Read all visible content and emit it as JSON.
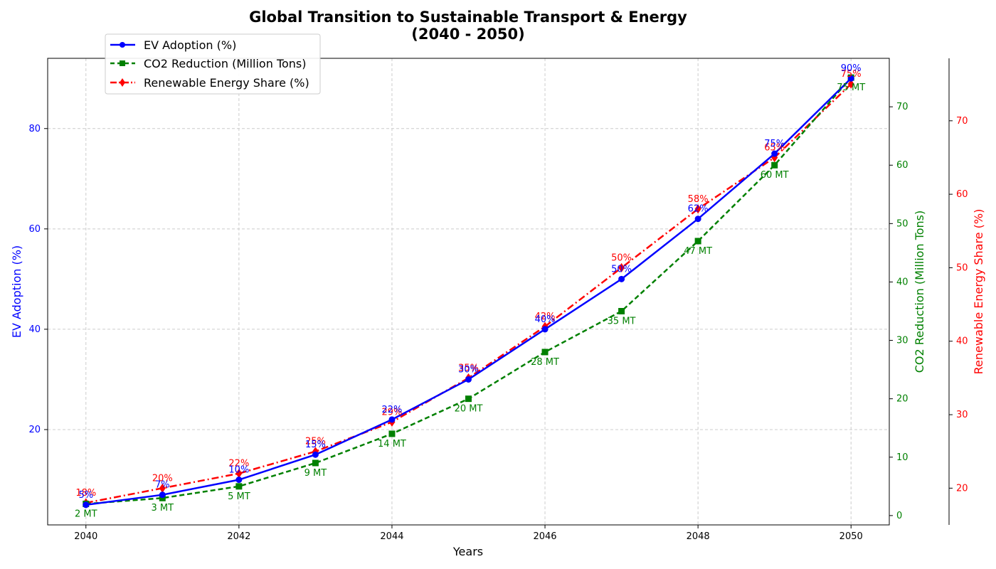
{
  "chart_data": {
    "type": "line",
    "title": "Global Transition to Sustainable Transport & Energy",
    "subtitle": "(2040 - 2050)",
    "xlabel": "Years",
    "x": [
      2040,
      2041,
      2042,
      2043,
      2044,
      2045,
      2046,
      2047,
      2048,
      2049,
      2050
    ],
    "x_ticks": [
      2040,
      2042,
      2044,
      2046,
      2048,
      2050
    ],
    "xlim": [
      2039.5,
      2050.5
    ],
    "grid": true,
    "legend_position": "top-left",
    "series": [
      {
        "name": "EV Adoption (%)",
        "axis": "left",
        "ylabel": "EV Adoption (%)",
        "ylim": [
          1,
          94
        ],
        "ticks": [
          20,
          40,
          60,
          80
        ],
        "color": "#0000ff",
        "linestyle": "solid",
        "marker": "circle",
        "values": [
          5,
          7,
          10,
          15,
          22,
          30,
          40,
          50,
          62,
          75,
          90
        ],
        "labels": [
          "5%",
          "7%",
          "10%",
          "15%",
          "22%",
          "30%",
          "40%",
          "50%",
          "62%",
          "75%",
          "90%"
        ]
      },
      {
        "name": "CO2 Reduction (Million Tons)",
        "axis": "right",
        "ylabel": "CO2 Reduction (Million Tons)",
        "ylim": [
          -1.6,
          78.3
        ],
        "ticks": [
          0,
          10,
          20,
          30,
          40,
          50,
          60,
          70
        ],
        "color": "#008000",
        "linestyle": "dashed",
        "marker": "square",
        "values": [
          2,
          3,
          5,
          9,
          14,
          20,
          28,
          35,
          47,
          60,
          75
        ],
        "labels": [
          "2 MT",
          "3 MT",
          "5 MT",
          "9 MT",
          "14 MT",
          "20 MT",
          "28 MT",
          "35 MT",
          "47 MT",
          "60 MT",
          "75 MT"
        ]
      },
      {
        "name": "Renewable Energy Share (%)",
        "axis": "far-right",
        "ylabel": "Renewable Energy Share (%)",
        "ylim": [
          15,
          78.5
        ],
        "ticks": [
          20,
          30,
          40,
          50,
          60,
          70
        ],
        "color": "#ff0000",
        "linestyle": "dashdot",
        "marker": "diamond",
        "values": [
          18,
          20,
          22,
          25,
          29,
          35,
          42,
          50,
          58,
          65,
          75
        ],
        "labels": [
          "18%",
          "20%",
          "22%",
          "25%",
          "29%",
          "35%",
          "42%",
          "50%",
          "58%",
          "65%",
          "75%"
        ]
      }
    ]
  }
}
